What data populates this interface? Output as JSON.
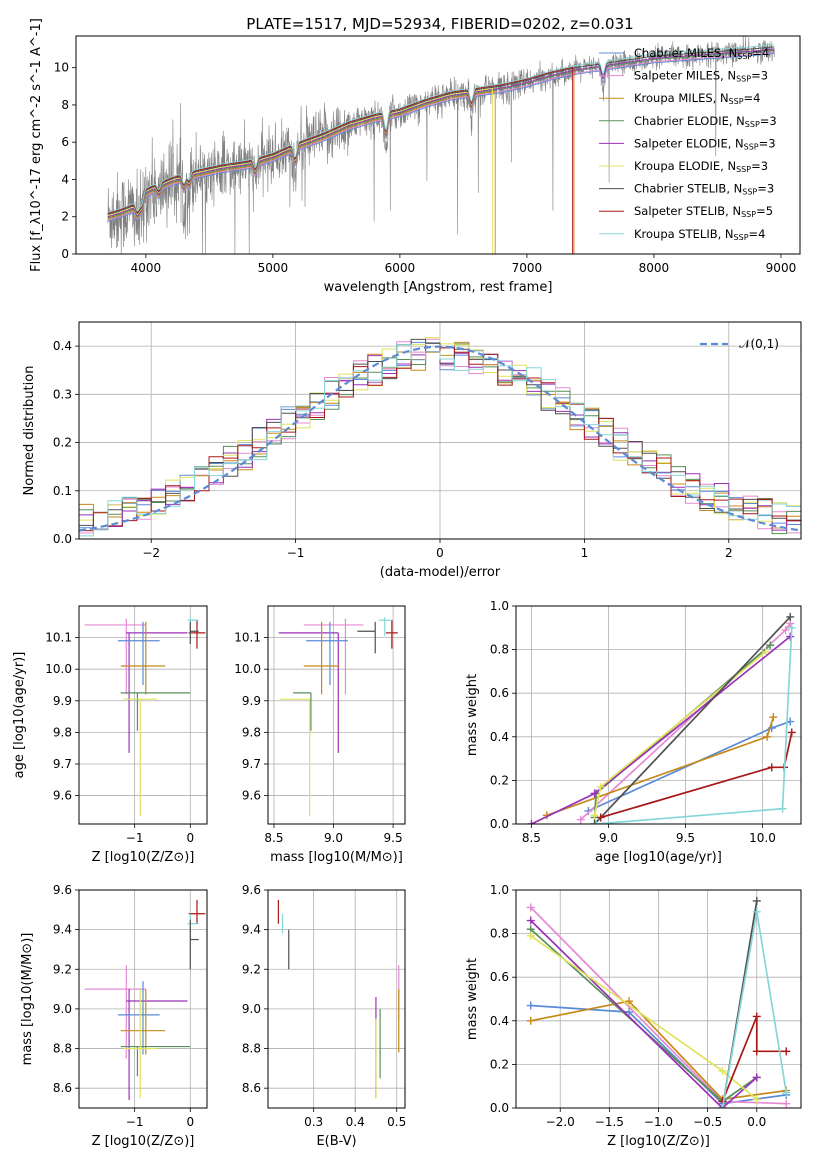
{
  "colors": {
    "Chabrier MILES": "#5b8bd6",
    "Salpeter MILES": "#e58ad3",
    "Kroupa MILES": "#c78a1a",
    "Chabrier ELODIE": "#5a8f5a",
    "Salpeter ELODIE": "#9b30b8",
    "Kroupa ELODIE": "#dfe35a",
    "Chabrier STELIB": "#505050",
    "Salpeter STELIB": "#a81818",
    "Kroupa STELIB": "#86d6d9",
    "gaussian": "#5b8bd6",
    "spectrum": "#808080"
  },
  "chart_data": [
    {
      "id": "spectrum",
      "type": "line",
      "title": "PLATE=1517, MJD=52934, FIBERID=0202, z=0.031",
      "xlabel": "wavelength [Angstrom, rest frame]",
      "ylabel": "Flux [f_λ10^-17 erg cm^-2 s^-1 A^-1]",
      "xlim": [
        3450,
        9150
      ],
      "ylim": [
        0,
        11.7
      ],
      "xticks": [
        4000,
        5000,
        6000,
        7000,
        8000,
        9000
      ],
      "yticks": [
        0,
        2,
        4,
        6,
        8,
        10
      ],
      "grid": false,
      "legend_position": "right",
      "legend": [
        {
          "name": "Chabrier MILES",
          "label": "Chabrier MILES, N",
          "sub": "SSP",
          "count": "=4"
        },
        {
          "name": "Salpeter MILES",
          "label": "Salpeter MILES, N",
          "sub": "SSP",
          "count": "=3"
        },
        {
          "name": "Kroupa MILES",
          "label": "Kroupa MILES, N",
          "sub": "SSP",
          "count": "=4"
        },
        {
          "name": "Chabrier ELODIE",
          "label": "Chabrier ELODIE, N",
          "sub": "SSP",
          "count": "=3"
        },
        {
          "name": "Salpeter ELODIE",
          "label": "Salpeter ELODIE, N",
          "sub": "SSP",
          "count": "=3"
        },
        {
          "name": "Kroupa ELODIE",
          "label": "Kroupa ELODIE, N",
          "sub": "SSP",
          "count": "=3"
        },
        {
          "name": "Chabrier STELIB",
          "label": "Chabrier STELIB, N",
          "sub": "SSP",
          "count": "=3"
        },
        {
          "name": "Salpeter STELIB",
          "label": "Salpeter STELIB, N",
          "sub": "SSP",
          "count": "=5"
        },
        {
          "name": "Kroupa STELIB",
          "label": "Kroupa STELIB, N",
          "sub": "SSP",
          "count": "=4"
        }
      ],
      "data_range": [
        3700,
        8950
      ],
      "continuum": [
        [
          3700,
          2.0
        ],
        [
          3800,
          2.2
        ],
        [
          3950,
          2.6
        ],
        [
          4000,
          3.3
        ],
        [
          4200,
          3.9
        ],
        [
          4400,
          4.3
        ],
        [
          4600,
          4.6
        ],
        [
          4800,
          4.8
        ],
        [
          5000,
          5.2
        ],
        [
          5200,
          5.8
        ],
        [
          5400,
          6.3
        ],
        [
          5600,
          6.9
        ],
        [
          5800,
          7.3
        ],
        [
          6000,
          7.6
        ],
        [
          6200,
          8.1
        ],
        [
          6400,
          8.5
        ],
        [
          6600,
          8.7
        ],
        [
          6800,
          8.9
        ],
        [
          7000,
          9.2
        ],
        [
          7200,
          9.6
        ],
        [
          7400,
          9.9
        ],
        [
          7600,
          10.1
        ],
        [
          7800,
          10.3
        ],
        [
          8000,
          10.5
        ],
        [
          8200,
          10.6
        ],
        [
          8400,
          10.7
        ],
        [
          8600,
          10.8
        ],
        [
          8800,
          10.9
        ],
        [
          8950,
          11.0
        ]
      ],
      "model_cutoffs": [
        {
          "name": "Kroupa ELODIE",
          "x": 6730
        },
        {
          "name": "Kroupa MILES",
          "x": 6750
        },
        {
          "name": "Salpeter STELIB",
          "x": 7360
        },
        {
          "name": "Kroupa MILES",
          "x": 7370
        }
      ]
    },
    {
      "id": "residuals",
      "type": "histogram",
      "xlabel": "(data-model)/error",
      "ylabel": "Normed distribution",
      "xlim": [
        -2.5,
        2.5
      ],
      "ylim": [
        0,
        0.45
      ],
      "xticks": [
        -2,
        -1,
        0,
        1,
        2
      ],
      "yticks": [
        0.0,
        0.1,
        0.2,
        0.3,
        0.4
      ],
      "grid": true,
      "bin_width": 0.1,
      "legend_position": "upper right",
      "gaussian_label": "𝒩(0,1)"
    },
    {
      "id": "z-age",
      "type": "errorbar",
      "xlabel": "Z [log10(Z/Z⊙)]",
      "ylabel": "age  [log10(age/yr)]",
      "xlim": [
        -2.0,
        0.3
      ],
      "ylim": [
        9.51,
        10.2
      ],
      "xticks": [
        -1,
        0
      ],
      "yticks": [
        9.6,
        9.7,
        9.8,
        9.9,
        10.0,
        10.1
      ],
      "grid": true,
      "points": [
        {
          "name": "Salpeter MILES",
          "x": -1.15,
          "xerr": [
            0.75,
            0.35
          ],
          "y": 10.14,
          "yerr": [
            0.22,
            0.02
          ]
        },
        {
          "name": "Salpeter ELODIE",
          "x": -1.1,
          "xerr": [
            0.05,
            1.05
          ],
          "y": 10.115,
          "yerr": [
            0.38,
            0.0
          ]
        },
        {
          "name": "Salpeter STELIB",
          "x": 0.12,
          "xerr": [
            0.15,
            0.15
          ],
          "y": 10.115,
          "yerr": [
            0.05,
            0.04
          ]
        },
        {
          "name": "Kroupa STELIB",
          "x": 0.0,
          "xerr": [
            0.05,
            0.15
          ],
          "y": 10.155,
          "yerr": [
            0.05,
            0.01
          ]
        },
        {
          "name": "Chabrier MILES",
          "x": -0.85,
          "xerr": [
            0.45,
            0.3
          ],
          "y": 10.09,
          "yerr": [
            0.14,
            0.06
          ]
        },
        {
          "name": "Kroupa MILES",
          "x": -0.8,
          "xerr": [
            0.45,
            0.35
          ],
          "y": 10.01,
          "yerr": [
            0.09,
            0.14
          ]
        },
        {
          "name": "Chabrier ELODIE",
          "x": -0.95,
          "xerr": [
            0.3,
            0.95
          ],
          "y": 9.925,
          "yerr": [
            0.12,
            0.0
          ]
        },
        {
          "name": "Kroupa ELODIE",
          "x": -0.9,
          "xerr": [
            0.3,
            0.3
          ],
          "y": 9.905,
          "yerr": [
            0.37,
            0.0
          ]
        },
        {
          "name": "Chabrier STELIB",
          "x": 0.0,
          "xerr": [
            0.0,
            0.15
          ],
          "y": 10.12,
          "yerr": [
            0.04,
            0.03
          ]
        }
      ]
    },
    {
      "id": "mass-age",
      "type": "errorbar",
      "xlabel": "mass [log10(M/M⊙)]",
      "ylabel": "",
      "xlim": [
        8.45,
        9.6
      ],
      "ylim": [
        9.51,
        10.2
      ],
      "xticks": [
        8.5,
        9.0,
        9.5
      ],
      "yticks": [
        9.6,
        9.7,
        9.8,
        9.9,
        10.0,
        10.1
      ],
      "grid": true,
      "points": [
        {
          "name": "Salpeter MILES",
          "x": 9.1,
          "xerr": [
            0.35,
            0.15
          ],
          "y": 10.14,
          "yerr": [
            0.22,
            0.02
          ]
        },
        {
          "name": "Salpeter ELODIE",
          "x": 9.04,
          "xerr": [
            0.5,
            0.0
          ],
          "y": 10.115,
          "yerr": [
            0.38,
            0.0
          ]
        },
        {
          "name": "Salpeter STELIB",
          "x": 9.49,
          "xerr": [
            0.05,
            0.05
          ],
          "y": 10.115,
          "yerr": [
            0.05,
            0.04
          ]
        },
        {
          "name": "Kroupa STELIB",
          "x": 9.43,
          "xerr": [
            0.05,
            0.05
          ],
          "y": 10.155,
          "yerr": [
            0.05,
            0.01
          ]
        },
        {
          "name": "Chabrier MILES",
          "x": 8.97,
          "xerr": [
            0.2,
            0.15
          ],
          "y": 10.09,
          "yerr": [
            0.14,
            0.06
          ]
        },
        {
          "name": "Kroupa MILES",
          "x": 8.9,
          "xerr": [
            0.15,
            0.15
          ],
          "y": 10.01,
          "yerr": [
            0.09,
            0.14
          ]
        },
        {
          "name": "Chabrier ELODIE",
          "x": 8.81,
          "xerr": [
            0.15,
            0.0
          ],
          "y": 9.925,
          "yerr": [
            0.12,
            0.0
          ]
        },
        {
          "name": "Kroupa ELODIE",
          "x": 8.8,
          "xerr": [
            0.25,
            0.0
          ],
          "y": 9.905,
          "yerr": [
            0.37,
            0.0
          ]
        },
        {
          "name": "Chabrier STELIB",
          "x": 9.35,
          "xerr": [
            0.15,
            0.0
          ],
          "y": 10.12,
          "yerr": [
            0.07,
            0.03
          ]
        }
      ]
    },
    {
      "id": "age-massweight",
      "type": "line",
      "xlabel": "age  [log10(age/yr)]",
      "ylabel": "mass weight",
      "xlim": [
        8.4,
        10.25
      ],
      "ylim": [
        0,
        1.0
      ],
      "xticks": [
        8.5,
        9.0,
        9.5,
        10.0
      ],
      "yticks": [
        0.0,
        0.2,
        0.4,
        0.6,
        0.8,
        1.0
      ],
      "grid": true,
      "series": [
        {
          "name": "Chabrier MILES",
          "x": [
            8.87,
            10.06,
            10.18
          ],
          "y": [
            0.06,
            0.44,
            0.47
          ]
        },
        {
          "name": "Salpeter MILES",
          "x": [
            8.82,
            10.15,
            10.18
          ],
          "y": [
            0.02,
            0.89,
            0.92
          ]
        },
        {
          "name": "Kroupa MILES",
          "x": [
            8.6,
            10.03,
            10.07
          ],
          "y": [
            0.04,
            0.4,
            0.49
          ]
        },
        {
          "name": "Chabrier ELODIE",
          "x": [
            8.91,
            8.92,
            10.05
          ],
          "y": [
            0.03,
            0.14,
            0.82
          ]
        },
        {
          "name": "Salpeter ELODIE",
          "x": [
            8.5,
            8.91,
            10.18
          ],
          "y": [
            0.0,
            0.14,
            0.86
          ]
        },
        {
          "name": "Kroupa ELODIE",
          "x": [
            8.91,
            8.95,
            10.02
          ],
          "y": [
            0.04,
            0.17,
            0.79
          ]
        },
        {
          "name": "Chabrier STELIB",
          "x": [
            8.91,
            10.18
          ],
          "y": [
            0.0,
            0.95
          ]
        },
        {
          "name": "Salpeter STELIB",
          "x": [
            8.95,
            10.06,
            10.14,
            10.19
          ],
          "y": [
            0.03,
            0.26,
            0.26,
            0.42
          ]
        },
        {
          "name": "Kroupa STELIB",
          "x": [
            8.92,
            10.13,
            10.19
          ],
          "y": [
            0.0,
            0.07,
            0.9
          ]
        }
      ]
    },
    {
      "id": "z-mass",
      "type": "errorbar",
      "xlabel": "Z [log10(Z/Z⊙)]",
      "ylabel": "mass [log10(M/M⊙)]",
      "xlim": [
        -2.0,
        0.3
      ],
      "ylim": [
        8.5,
        9.6
      ],
      "xticks": [
        -1,
        0
      ],
      "yticks": [
        8.6,
        8.8,
        9.0,
        9.2,
        9.4,
        9.6
      ],
      "grid": true,
      "points": [
        {
          "name": "Salpeter MILES",
          "x": -1.15,
          "xerr": [
            0.75,
            0.35
          ],
          "y": 9.1,
          "yerr": [
            0.35,
            0.12
          ]
        },
        {
          "name": "Salpeter ELODIE",
          "x": -1.1,
          "xerr": [
            0.05,
            1.05
          ],
          "y": 9.04,
          "yerr": [
            0.5,
            0.06
          ]
        },
        {
          "name": "Salpeter STELIB",
          "x": 0.12,
          "xerr": [
            0.15,
            0.15
          ],
          "y": 9.48,
          "yerr": [
            0.05,
            0.07
          ]
        },
        {
          "name": "Kroupa STELIB",
          "x": 0.0,
          "xerr": [
            0.05,
            0.15
          ],
          "y": 9.43,
          "yerr": [
            0.05,
            0.05
          ]
        },
        {
          "name": "Chabrier MILES",
          "x": -0.85,
          "xerr": [
            0.45,
            0.3
          ],
          "y": 8.97,
          "yerr": [
            0.2,
            0.17
          ]
        },
        {
          "name": "Kroupa MILES",
          "x": -0.8,
          "xerr": [
            0.45,
            0.35
          ],
          "y": 8.89,
          "yerr": [
            0.12,
            0.21
          ]
        },
        {
          "name": "Chabrier ELODIE",
          "x": -0.95,
          "xerr": [
            0.3,
            0.95
          ],
          "y": 8.81,
          "yerr": [
            0.15,
            0.0
          ]
        },
        {
          "name": "Kroupa ELODIE",
          "x": -0.9,
          "xerr": [
            0.3,
            0.3
          ],
          "y": 8.8,
          "yerr": [
            0.25,
            0.3
          ]
        },
        {
          "name": "Chabrier STELIB",
          "x": 0.0,
          "xerr": [
            0.0,
            0.15
          ],
          "y": 9.35,
          "yerr": [
            0.15,
            0.1
          ]
        }
      ]
    },
    {
      "id": "ebv-mass",
      "type": "errorbar",
      "xlabel": "E(B-V)",
      "ylabel": "",
      "xlim": [
        0.19,
        0.52
      ],
      "ylim": [
        8.5,
        9.6
      ],
      "xticks": [
        0.3,
        0.4,
        0.5
      ],
      "yticks": [
        8.6,
        8.8,
        9.0,
        9.2,
        9.4,
        9.6
      ],
      "grid": true,
      "points": [
        {
          "name": "Salpeter STELIB",
          "x": 0.215,
          "y": 9.48,
          "yerr": [
            0.05,
            0.07
          ]
        },
        {
          "name": "Kroupa STELIB",
          "x": 0.225,
          "y": 9.43,
          "yerr": [
            0.05,
            0.05
          ]
        },
        {
          "name": "Chabrier STELIB",
          "x": 0.24,
          "y": 9.3,
          "yerr": [
            0.1,
            0.1
          ]
        },
        {
          "name": "Salpeter ELODIE",
          "x": 0.45,
          "y": 8.85,
          "yerr": [
            0.3,
            0.21
          ]
        },
        {
          "name": "Kroupa ELODIE",
          "x": 0.45,
          "y": 8.8,
          "yerr": [
            0.25,
            0.15
          ]
        },
        {
          "name": "Chabrier ELODIE",
          "x": 0.46,
          "y": 8.85,
          "yerr": [
            0.2,
            0.15
          ]
        },
        {
          "name": "Salpeter MILES",
          "x": 0.505,
          "y": 9.1,
          "yerr": [
            0.15,
            0.12
          ]
        },
        {
          "name": "Kroupa MILES",
          "x": 0.505,
          "y": 8.9,
          "yerr": [
            0.12,
            0.2
          ]
        }
      ]
    },
    {
      "id": "z-massweight",
      "type": "line",
      "xlabel": "Z [log10(Z/Z⊙)]",
      "ylabel": "mass weight",
      "xlim": [
        -2.45,
        0.45
      ],
      "ylim": [
        0,
        1.0
      ],
      "xticks": [
        -2.0,
        -1.5,
        -1.0,
        -0.5,
        0.0
      ],
      "yticks": [
        0.0,
        0.2,
        0.4,
        0.6,
        0.8,
        1.0
      ],
      "grid": true,
      "series": [
        {
          "name": "Chabrier MILES",
          "x": [
            -2.3,
            -1.3,
            -0.35,
            0.3
          ],
          "y": [
            0.47,
            0.44,
            0.02,
            0.06
          ]
        },
        {
          "name": "Salpeter MILES",
          "x": [
            -2.3,
            -0.35,
            0.3
          ],
          "y": [
            0.92,
            0.03,
            0.02
          ]
        },
        {
          "name": "Kroupa MILES",
          "x": [
            -2.3,
            -1.3,
            -0.35,
            0.3
          ],
          "y": [
            0.4,
            0.49,
            0.04,
            0.08
          ]
        },
        {
          "name": "Chabrier ELODIE",
          "x": [
            -2.3,
            -0.35,
            0.0
          ],
          "y": [
            0.82,
            0.03,
            0.14
          ]
        },
        {
          "name": "Salpeter ELODIE",
          "x": [
            -2.3,
            -0.35,
            0.0
          ],
          "y": [
            0.86,
            0.0,
            0.14
          ]
        },
        {
          "name": "Kroupa ELODIE",
          "x": [
            -2.3,
            -0.35,
            0.0
          ],
          "y": [
            0.79,
            0.17,
            0.04
          ]
        },
        {
          "name": "Chabrier STELIB",
          "x": [
            -0.35,
            0.0
          ],
          "y": [
            0.0,
            0.95
          ]
        },
        {
          "name": "Salpeter STELIB",
          "x": [
            -0.35,
            0.0,
            0.0,
            0.3
          ],
          "y": [
            0.03,
            0.42,
            0.26,
            0.26
          ]
        },
        {
          "name": "Kroupa STELIB",
          "x": [
            -0.35,
            0.0,
            0.3
          ],
          "y": [
            0.0,
            0.9,
            0.07
          ]
        }
      ]
    }
  ]
}
